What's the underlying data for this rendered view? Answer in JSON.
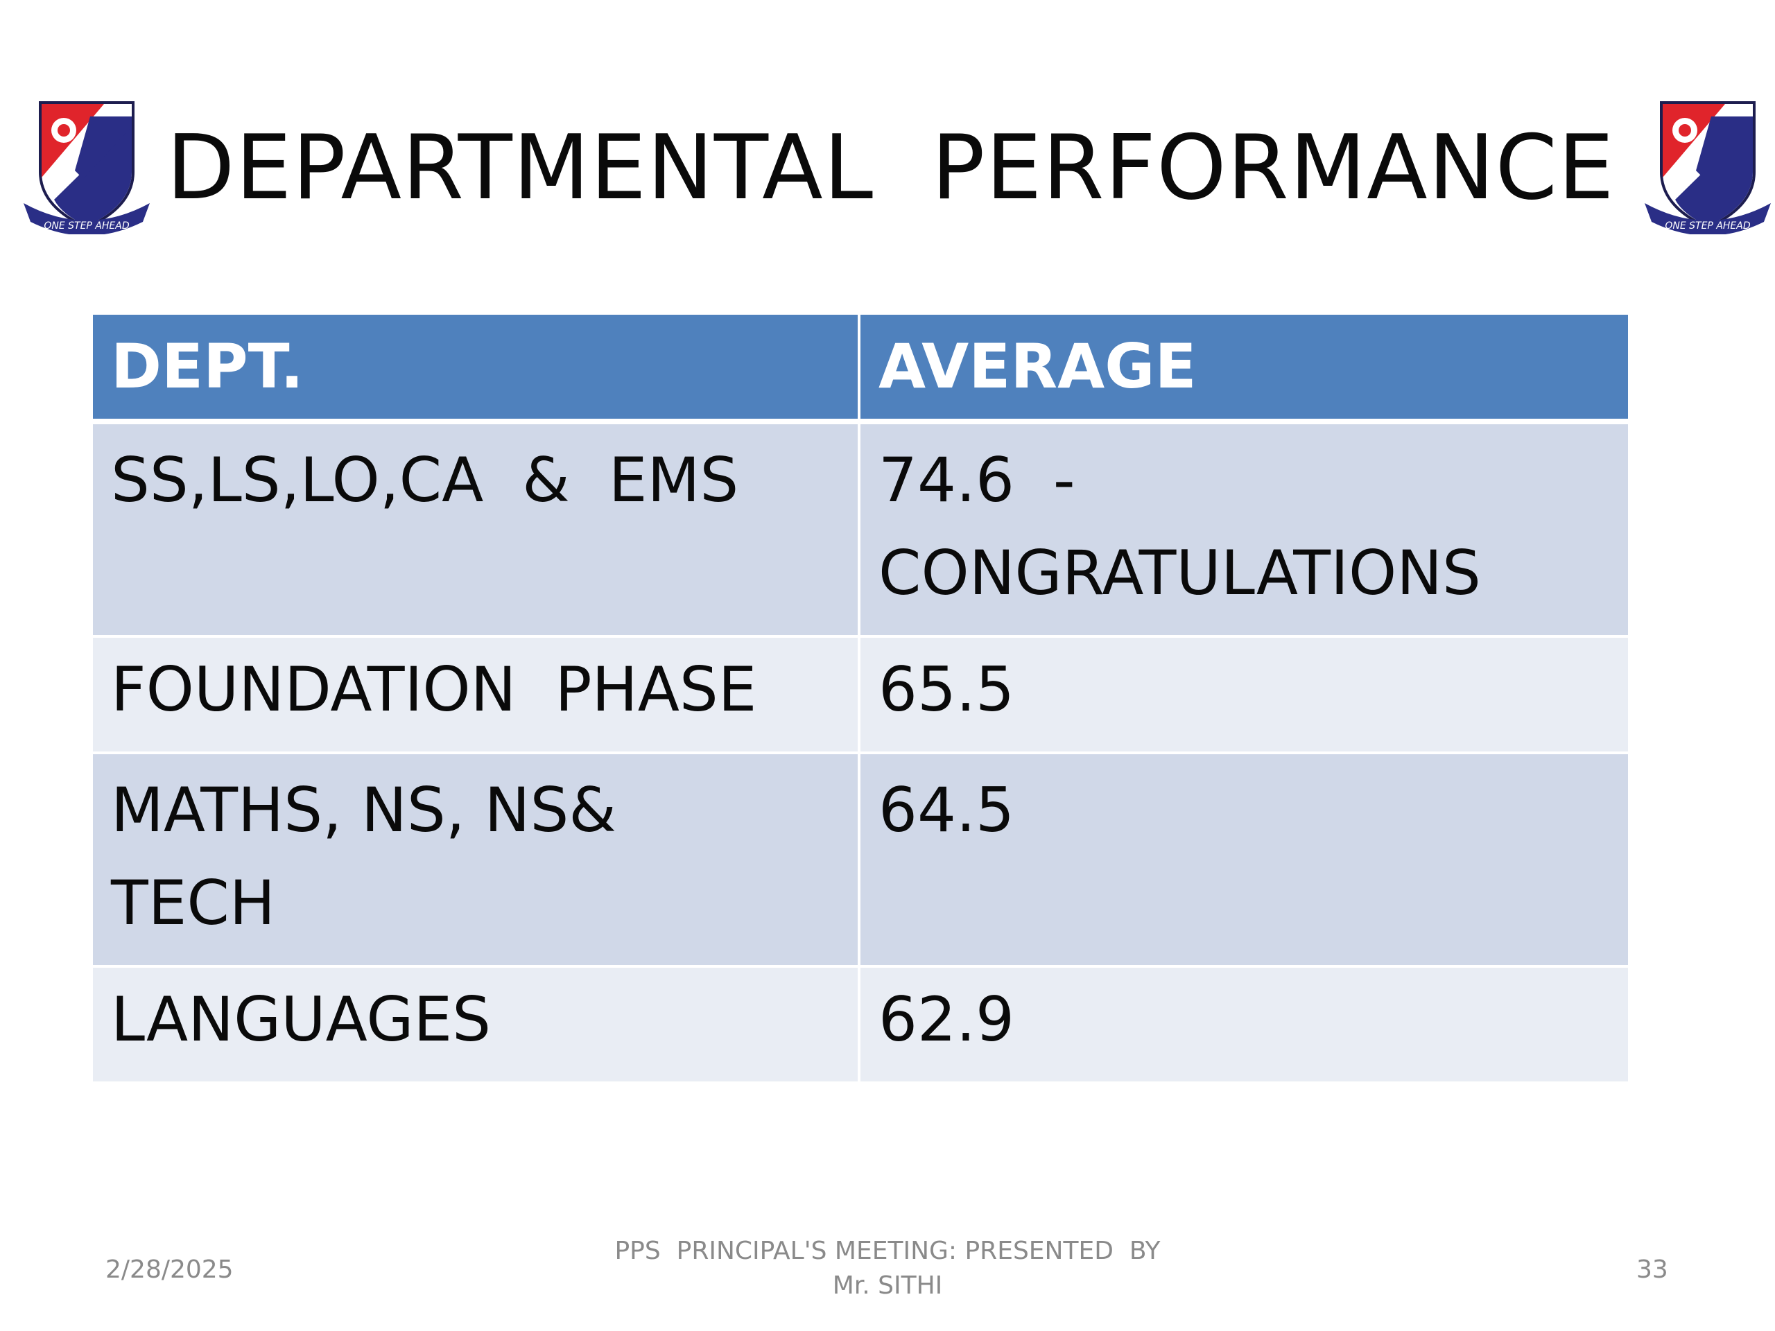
{
  "slide": {
    "title": "DEPARTMENTAL  PERFORMANCE",
    "crest_motto": "ONE STEP AHEAD",
    "colors": {
      "header_fill": "#4f81bd",
      "row_band_dark": "#d0d8e8",
      "row_band_light": "#e9edf4",
      "crest_red": "#e0242b",
      "crest_navy": "#2a2e86"
    }
  },
  "table": {
    "headers": [
      "DEPT.",
      "AVERAGE"
    ],
    "rows": [
      {
        "dept": "SS,LS,LO,CA  &  EMS",
        "average": "74.6  -\nCONGRATULATIONS"
      },
      {
        "dept": "FOUNDATION  PHASE",
        "average": "65.5"
      },
      {
        "dept": "MATHS, NS, NS&\nTECH",
        "average": "64.5"
      },
      {
        "dept": "LANGUAGES",
        "average": "62.9"
      }
    ]
  },
  "footer": {
    "date": "2/28/2025",
    "center_line1": "PPS  PRINCIPAL'S MEETING: PRESENTED  BY",
    "center_line2": "Mr. SITHI",
    "page_number": "33"
  }
}
